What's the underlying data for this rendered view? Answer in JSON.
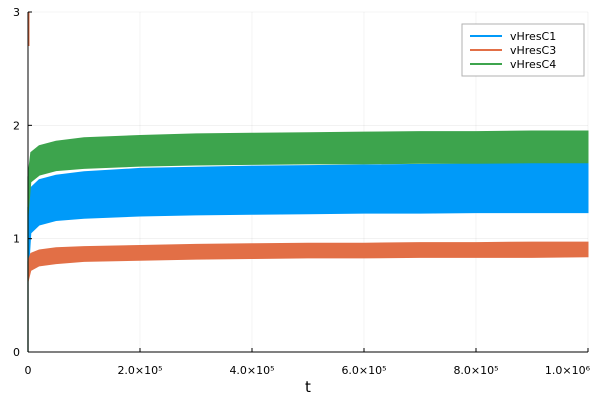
{
  "chart_data": {
    "type": "area",
    "title": "",
    "xlabel": "t",
    "ylabel": "",
    "xlim": [
      0,
      1000000
    ],
    "ylim": [
      0,
      3
    ],
    "x_ticks": [
      {
        "value": 0,
        "label": "0"
      },
      {
        "value": 200000,
        "label": "2.0×10⁵"
      },
      {
        "value": 400000,
        "label": "4.0×10⁵"
      },
      {
        "value": 600000,
        "label": "6.0×10⁵"
      },
      {
        "value": 800000,
        "label": "8.0×10⁵"
      },
      {
        "value": 1000000,
        "label": "1.0×10⁶"
      }
    ],
    "y_ticks": [
      {
        "value": 0,
        "label": "0"
      },
      {
        "value": 1,
        "label": "1"
      },
      {
        "value": 2,
        "label": "2"
      },
      {
        "value": 3,
        "label": "3"
      }
    ],
    "grid": true,
    "legend_position": "top-right",
    "series": [
      {
        "name": "vHresC1",
        "color": "#009af9",
        "x": [
          0,
          5000,
          20000,
          50000,
          100000,
          200000,
          300000,
          400000,
          500000,
          600000,
          700000,
          800000,
          900000,
          1000000
        ],
        "upper": [
          1.28,
          1.45,
          1.52,
          1.56,
          1.59,
          1.62,
          1.63,
          1.64,
          1.645,
          1.65,
          1.655,
          1.66,
          1.665,
          1.67
        ],
        "lower": [
          0.65,
          1.05,
          1.12,
          1.16,
          1.18,
          1.2,
          1.21,
          1.215,
          1.22,
          1.225,
          1.225,
          1.23,
          1.23,
          1.23
        ]
      },
      {
        "name": "vHresC3",
        "color": "#e26f46",
        "x": [
          0,
          5000,
          20000,
          50000,
          100000,
          200000,
          300000,
          400000,
          500000,
          600000,
          700000,
          800000,
          900000,
          1000000
        ],
        "upper": [
          0.8,
          0.87,
          0.9,
          0.92,
          0.93,
          0.94,
          0.95,
          0.955,
          0.96,
          0.96,
          0.965,
          0.965,
          0.97,
          0.97
        ],
        "lower": [
          0.62,
          0.72,
          0.76,
          0.78,
          0.8,
          0.81,
          0.82,
          0.825,
          0.83,
          0.83,
          0.835,
          0.835,
          0.835,
          0.84
        ]
      },
      {
        "name": "vHresC4",
        "color": "#3da44d",
        "x": [
          0,
          5000,
          20000,
          50000,
          100000,
          200000,
          300000,
          400000,
          500000,
          600000,
          700000,
          800000,
          900000,
          1000000
        ],
        "upper": [
          1.55,
          1.76,
          1.82,
          1.86,
          1.89,
          1.91,
          1.925,
          1.93,
          1.935,
          1.94,
          1.945,
          1.945,
          1.95,
          1.95
        ],
        "lower": [
          1.2,
          1.5,
          1.56,
          1.6,
          1.62,
          1.64,
          1.65,
          1.655,
          1.66,
          1.66,
          1.665,
          1.665,
          1.67,
          1.67
        ]
      }
    ]
  }
}
